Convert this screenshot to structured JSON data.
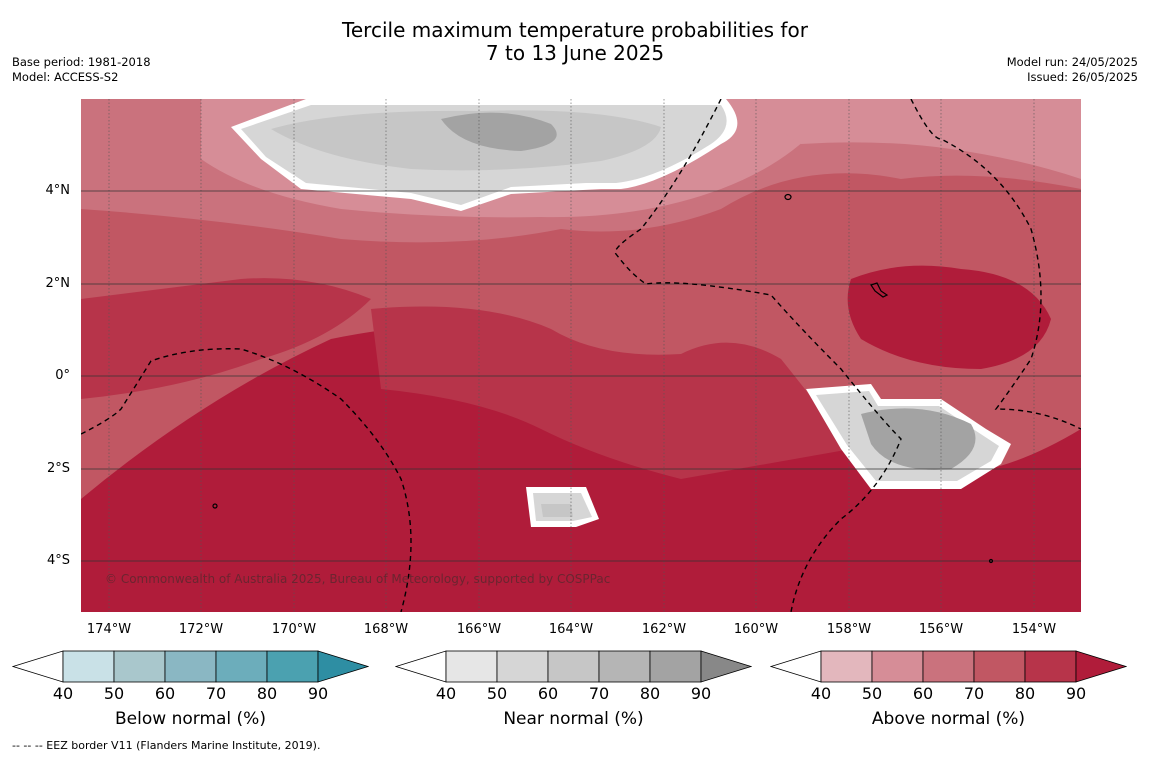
{
  "title_line1": "Tercile maximum temperature probabilities for",
  "title_line2": "7 to 13 June 2025",
  "meta_left": {
    "base_period": "Base period: 1981-2018",
    "model": "Model: ACCESS-S2"
  },
  "meta_right": {
    "model_run": "Model run: 24/05/2025",
    "issued": "Issued: 26/05/2025"
  },
  "lat_labels": [
    "4°N",
    "2°N",
    "0°",
    "2°S",
    "4°S"
  ],
  "lon_labels": [
    "174°W",
    "172°W",
    "170°W",
    "168°W",
    "166°W",
    "164°W",
    "162°W",
    "160°W",
    "158°W",
    "156°W",
    "154°W"
  ],
  "copyright": "© Commonwealth of Australia 2025, Bureau of Meteorology, supported by COSPPac",
  "colorbars": [
    {
      "label": "Below normal (%)",
      "ticks": [
        "40",
        "50",
        "60",
        "70",
        "80",
        "90"
      ],
      "colors": [
        "#c9e1e7",
        "#a9c7cc",
        "#8ab7c3",
        "#6cadbb",
        "#4ba1b0",
        "#2e8ea3"
      ]
    },
    {
      "label": "Near normal (%)",
      "ticks": [
        "40",
        "50",
        "60",
        "70",
        "80",
        "90"
      ],
      "colors": [
        "#e6e6e6",
        "#d6d6d6",
        "#c6c6c6",
        "#b5b5b5",
        "#a3a3a3",
        "#888888"
      ]
    },
    {
      "label": "Above normal (%)",
      "ticks": [
        "40",
        "50",
        "60",
        "70",
        "80",
        "90"
      ],
      "colors": [
        "#e3b7bd",
        "#d68d97",
        "#ca727d",
        "#c15763",
        "#b7344a",
        "#b01c3a"
      ]
    }
  ],
  "footnote": "--  --  -- EEZ border V11 (Flanders Marine Institute, 2019)."
}
